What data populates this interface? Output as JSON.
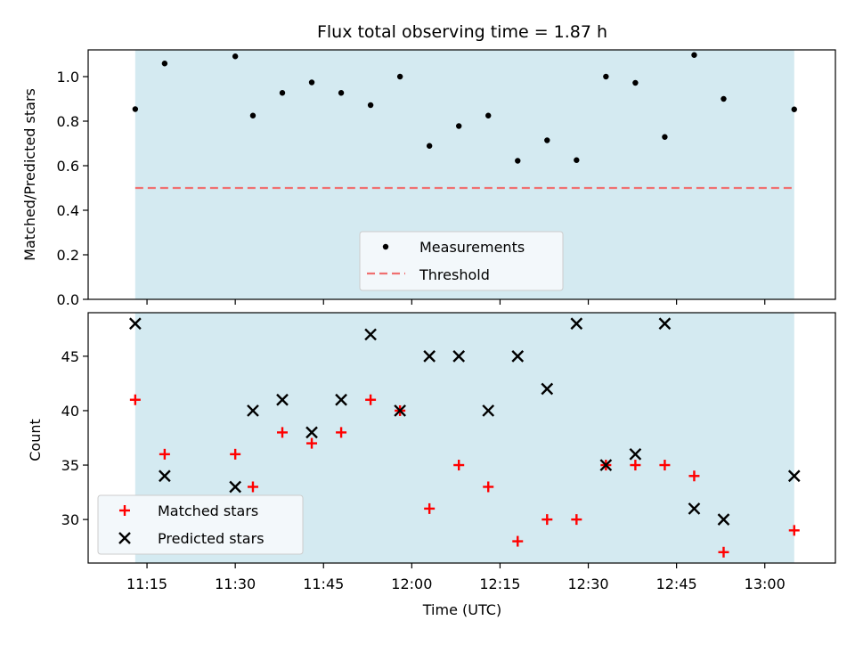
{
  "title": "Flux total observing time = 1.87 h",
  "colors": {
    "shade": "#d4eaf1",
    "threshold": "#f07070",
    "matched": "#ff0000",
    "predicted": "#000000",
    "measurement": "#000000"
  },
  "chart_data": [
    {
      "type": "scatter",
      "ylabel": "Matched/Predicted stars",
      "xlabel": "",
      "xlim": [
        "11:05",
        "13:12"
      ],
      "ylim": [
        0,
        1.12
      ],
      "yticks": [
        0.0,
        0.2,
        0.4,
        0.6,
        0.8,
        1.0
      ],
      "ytick_labels": [
        "0.0",
        "0.2",
        "0.4",
        "0.6",
        "0.8",
        "1.0"
      ],
      "shaded_span": [
        "11:13",
        "13:05"
      ],
      "legend_position": "lower center",
      "series": [
        {
          "name": "Measurements",
          "marker": "dot",
          "x": [
            "11:13",
            "11:18",
            "11:30",
            "11:33",
            "11:38",
            "11:43",
            "11:48",
            "11:53",
            "11:58",
            "12:03",
            "12:08",
            "12:13",
            "12:18",
            "12:23",
            "12:28",
            "12:33",
            "12:38",
            "12:43",
            "12:48",
            "12:53",
            "13:05"
          ],
          "y": [
            0.854,
            1.059,
            1.091,
            0.825,
            0.927,
            0.974,
            0.927,
            0.872,
            1.0,
            0.689,
            0.778,
            0.825,
            0.622,
            0.714,
            0.625,
            1.0,
            0.972,
            0.729,
            1.097,
            0.9,
            0.853
          ]
        },
        {
          "name": "Threshold",
          "marker": "dashed-line",
          "x": [
            "11:13",
            "13:05"
          ],
          "y": [
            0.5,
            0.5
          ]
        }
      ]
    },
    {
      "type": "scatter",
      "ylabel": "Count",
      "xlabel": "Time (UTC)",
      "xlim": [
        "11:05",
        "13:12"
      ],
      "ylim": [
        26,
        49
      ],
      "yticks": [
        30,
        35,
        40,
        45
      ],
      "ytick_labels": [
        "30",
        "35",
        "40",
        "45"
      ],
      "xticks": [
        "11:15",
        "11:30",
        "11:45",
        "12:00",
        "12:15",
        "12:30",
        "12:45",
        "13:00"
      ],
      "xtick_labels": [
        "11:15",
        "11:30",
        "11:45",
        "12:00",
        "12:15",
        "12:30",
        "12:45",
        "13:00"
      ],
      "shaded_span": [
        "11:13",
        "13:05"
      ],
      "legend_position": "lower left",
      "series": [
        {
          "name": "Matched stars",
          "marker": "plus",
          "x": [
            "11:13",
            "11:18",
            "11:30",
            "11:33",
            "11:38",
            "11:43",
            "11:48",
            "11:53",
            "11:58",
            "12:03",
            "12:08",
            "12:13",
            "12:18",
            "12:23",
            "12:28",
            "12:33",
            "12:38",
            "12:43",
            "12:48",
            "12:53",
            "13:05"
          ],
          "y": [
            41,
            36,
            36,
            33,
            38,
            37,
            38,
            41,
            40,
            31,
            35,
            33,
            28,
            30,
            30,
            35,
            35,
            35,
            34,
            27,
            29
          ]
        },
        {
          "name": "Predicted stars",
          "marker": "x",
          "x": [
            "11:13",
            "11:18",
            "11:30",
            "11:33",
            "11:38",
            "11:43",
            "11:48",
            "11:53",
            "11:58",
            "12:03",
            "12:08",
            "12:13",
            "12:18",
            "12:23",
            "12:28",
            "12:33",
            "12:38",
            "12:43",
            "12:48",
            "12:53",
            "13:05"
          ],
          "y": [
            48,
            34,
            33,
            40,
            41,
            38,
            41,
            47,
            40,
            45,
            45,
            40,
            45,
            42,
            48,
            35,
            36,
            48,
            31,
            30,
            34
          ]
        }
      ]
    }
  ]
}
